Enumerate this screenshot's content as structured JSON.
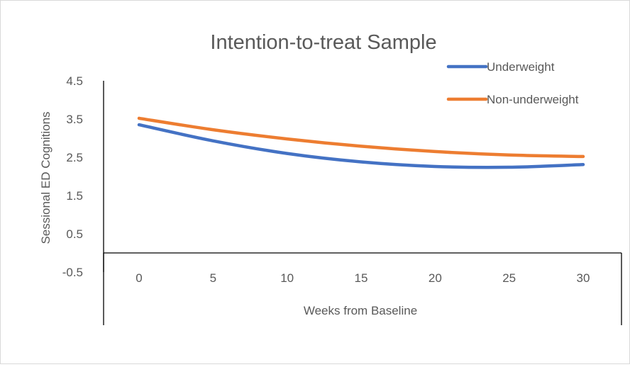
{
  "chart_data": {
    "type": "line",
    "title": "Intention-to-treat Sample",
    "xlabel": "Weeks from Baseline",
    "ylabel": "Sessional ED Cognitions",
    "x": [
      0,
      5,
      10,
      15,
      20,
      25,
      30
    ],
    "x_tick_labels": [
      "0",
      "5",
      "10",
      "15",
      "20",
      "25",
      "30"
    ],
    "ylim": [
      -0.5,
      4.5
    ],
    "y_ticks": [
      -0.5,
      0.5,
      1.5,
      2.5,
      3.5,
      4.5
    ],
    "y_tick_labels": [
      "-0.5",
      "0.5",
      "1.5",
      "2.5",
      "3.5",
      "4.5"
    ],
    "x_axis_crosses_at": 0,
    "grid": false,
    "legend_position": "top-right",
    "series": [
      {
        "name": "Underweight",
        "color": "#4472c4",
        "values": [
          3.35,
          2.93,
          2.6,
          2.38,
          2.26,
          2.24,
          2.31
        ]
      },
      {
        "name": "Non-underweight",
        "color": "#ed7d31",
        "values": [
          3.52,
          3.22,
          2.98,
          2.79,
          2.65,
          2.56,
          2.52
        ]
      }
    ]
  }
}
